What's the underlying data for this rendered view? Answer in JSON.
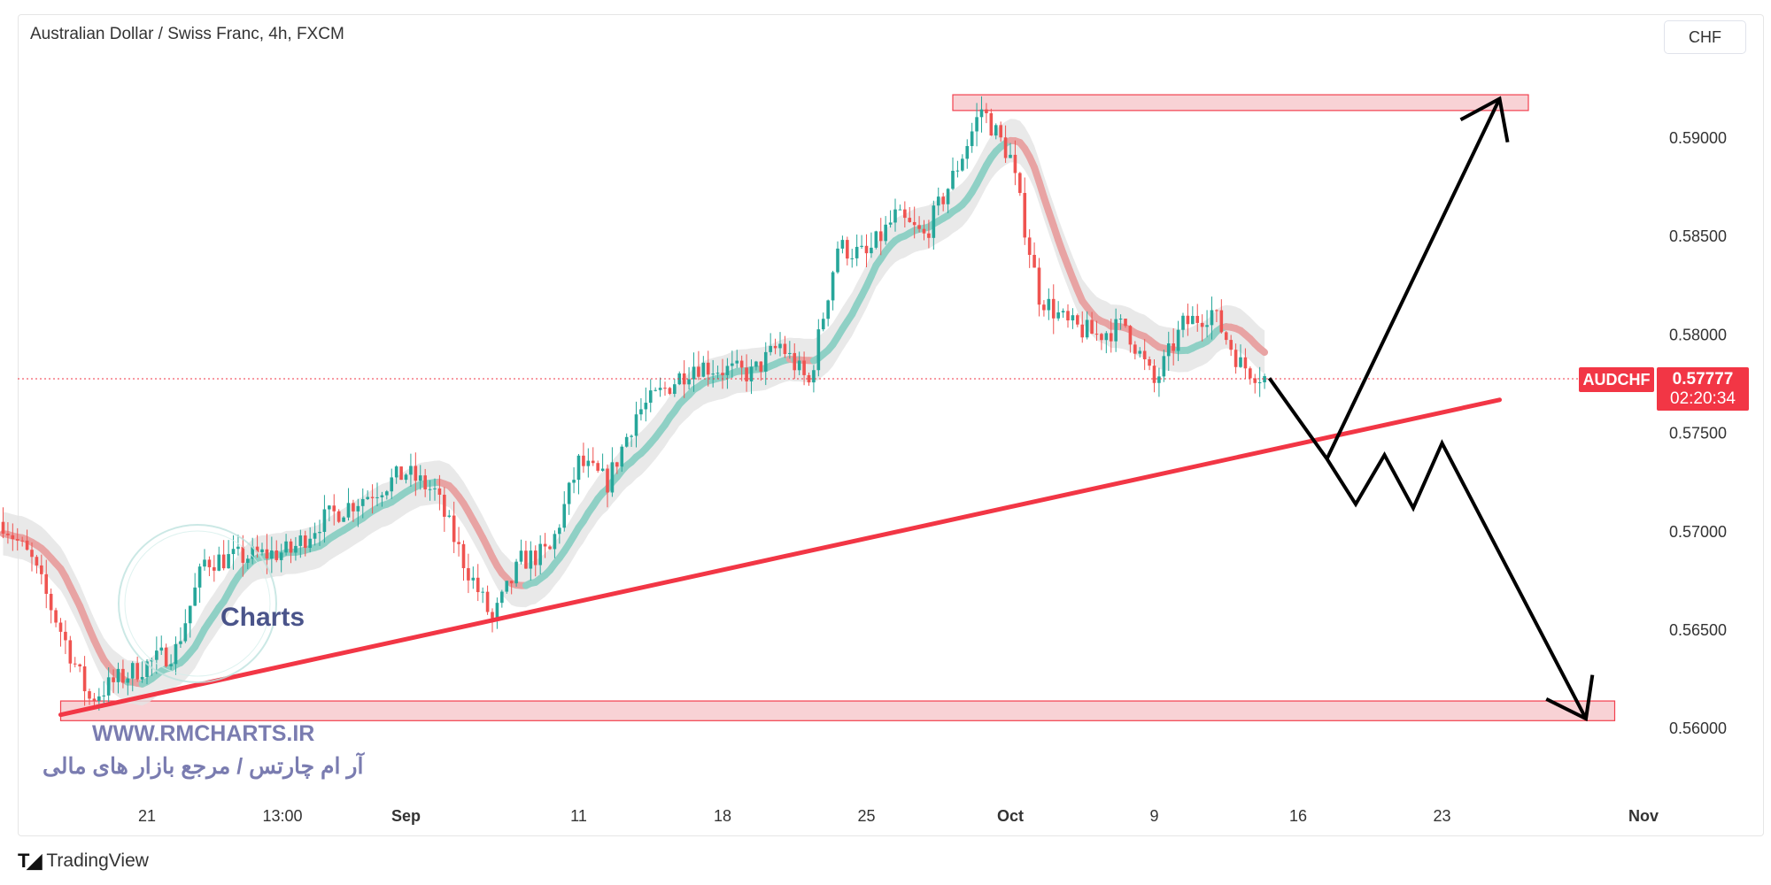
{
  "header": {
    "title": "Australian Dollar / Swiss Franc, 4h, FXCM",
    "currency_button": "CHF"
  },
  "price_marker": {
    "symbol": "AUDCHF",
    "price": "0.57777",
    "countdown": "02:20:34",
    "color": "#f23645"
  },
  "watermark": {
    "site": "WWW.RMCHARTS.IR",
    "tagline": "آر ام چارتس / مرجع بازار های مالی",
    "logo_text": "Charts"
  },
  "footer": {
    "brand": "TradingView"
  },
  "chart_data": {
    "type": "candlestick",
    "title": "Australian Dollar / Swiss Franc, 4h, FXCM",
    "ylim": [
      0.5575,
      0.5935
    ],
    "y_ticks": [
      "0.59000",
      "0.58500",
      "0.58000",
      "0.57500",
      "0.57000",
      "0.56500",
      "0.56000"
    ],
    "y_tick_values": [
      0.59,
      0.585,
      0.58,
      0.575,
      0.57,
      0.565,
      0.56
    ],
    "x_ticks": [
      {
        "label": "21",
        "date": "2023-08-21",
        "bold": false
      },
      {
        "label": "13:00",
        "date": "2023-08-25",
        "bold": false
      },
      {
        "label": "Sep",
        "date": "2023-09-01",
        "bold": true
      },
      {
        "label": "11",
        "date": "2023-09-11",
        "bold": false
      },
      {
        "label": "18",
        "date": "2023-09-18",
        "bold": false
      },
      {
        "label": "25",
        "date": "2023-09-25",
        "bold": false
      },
      {
        "label": "Oct",
        "date": "2023-10-02",
        "bold": true
      },
      {
        "label": "9",
        "date": "2023-10-09",
        "bold": false
      },
      {
        "label": "16",
        "date": "2023-10-16",
        "bold": false
      },
      {
        "label": "23",
        "date": "2023-10-23",
        "bold": false
      },
      {
        "label": "Nov",
        "date": "2023-11-01",
        "bold": true
      }
    ],
    "price_path": [
      [
        "2023-08-14",
        0.5705
      ],
      [
        "2023-08-15",
        0.5685
      ],
      [
        "2023-08-17",
        0.5615
      ],
      [
        "2023-08-18",
        0.5625
      ],
      [
        "2023-08-22",
        0.564
      ],
      [
        "2023-08-23",
        0.5685
      ],
      [
        "2023-08-28",
        0.569
      ],
      [
        "2023-08-29",
        0.5705
      ],
      [
        "2023-09-01",
        0.573
      ],
      [
        "2023-09-04",
        0.572
      ],
      [
        "2023-09-05",
        0.5685
      ],
      [
        "2023-09-06",
        0.5655
      ],
      [
        "2023-09-07",
        0.5685
      ],
      [
        "2023-09-08",
        0.569
      ],
      [
        "2023-09-11",
        0.5735
      ],
      [
        "2023-09-12",
        0.5725
      ],
      [
        "2023-09-13",
        0.576
      ],
      [
        "2023-09-15",
        0.5785
      ],
      [
        "2023-09-19",
        0.578
      ],
      [
        "2023-09-20",
        0.5795
      ],
      [
        "2023-09-21",
        0.5775
      ],
      [
        "2023-09-22",
        0.5845
      ],
      [
        "2023-09-25",
        0.584
      ],
      [
        "2023-09-26",
        0.586
      ],
      [
        "2023-09-27",
        0.585
      ],
      [
        "2023-09-28",
        0.588
      ],
      [
        "2023-09-29",
        0.5915
      ],
      [
        "2023-10-02",
        0.589
      ],
      [
        "2023-10-03",
        0.582
      ],
      [
        "2023-10-04",
        0.5805
      ],
      [
        "2023-10-05",
        0.58
      ],
      [
        "2023-10-06",
        0.5805
      ],
      [
        "2023-10-09",
        0.5775
      ],
      [
        "2023-10-10",
        0.5805
      ],
      [
        "2023-10-11",
        0.5812
      ],
      [
        "2023-10-12",
        0.5785
      ],
      [
        "2023-10-13",
        0.5777
      ]
    ],
    "last_price": 0.57777,
    "zones": [
      {
        "name": "resistance",
        "from": 0.5914,
        "to": 0.5922,
        "start": "2023-09-28",
        "end": "2023-10-26"
      },
      {
        "name": "support",
        "from": 0.5604,
        "to": 0.5614,
        "start": "2023-08-16",
        "end": "2023-10-31"
      }
    ],
    "trendline": {
      "start": [
        "2023-08-16",
        0.5607
      ],
      "end": [
        "2023-10-25",
        0.5767
      ]
    },
    "projection": [
      [
        "2023-10-13",
        0.5778
      ],
      [
        "2023-10-17",
        0.5737
      ],
      [
        "2023-10-18",
        0.5714
      ],
      [
        "2023-10-19",
        0.5739
      ],
      [
        "2023-10-20",
        0.5712
      ],
      [
        "2023-10-23",
        0.5745
      ],
      [
        "2023-10-30",
        0.5605
      ]
    ],
    "projection_alt": [
      [
        "2023-10-17",
        0.5737
      ],
      [
        "2023-10-25",
        0.592
      ]
    ],
    "colors": {
      "up": "#26a69a",
      "down": "#ef5350",
      "trendline": "#f23645",
      "zone": "#f8d0d3",
      "projection": "#000000"
    }
  }
}
